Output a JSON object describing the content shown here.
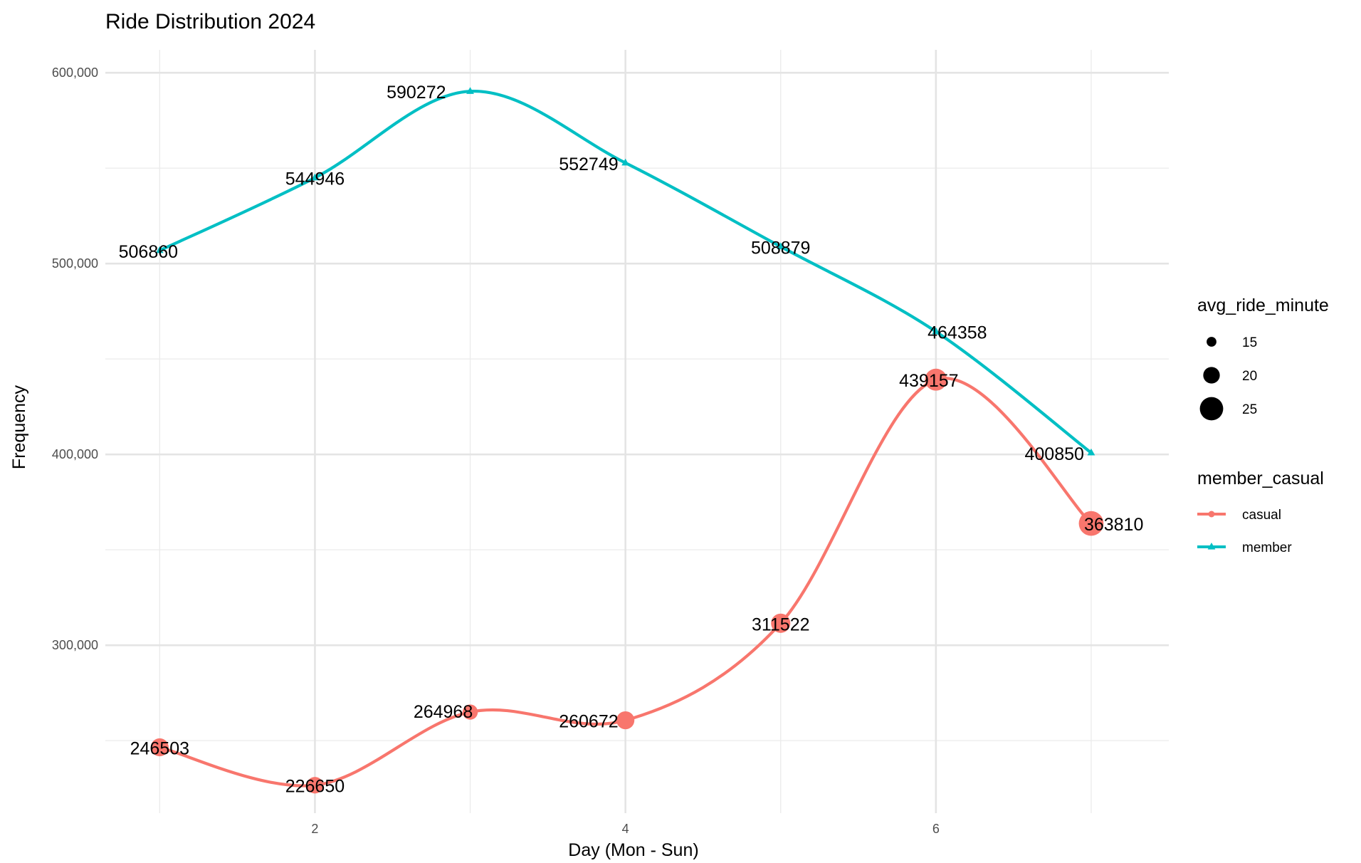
{
  "chart_data": {
    "type": "line",
    "title": "Ride Distribution 2024",
    "xlabel": "Day (Mon - Sun)",
    "ylabel": "Frequency",
    "x": [
      1,
      2,
      3,
      4,
      5,
      6,
      7
    ],
    "xlim": [
      0.65,
      7.5
    ],
    "ylim": [
      212000,
      612000
    ],
    "x_ticks": [
      2,
      4,
      6
    ],
    "x_tick_labels": [
      "2",
      "4",
      "6"
    ],
    "y_ticks": [
      300000,
      400000,
      500000,
      600000
    ],
    "y_tick_labels": [
      "300,000",
      "400,000",
      "500,000",
      "600,000"
    ],
    "grid": true,
    "legend_position": "right",
    "series": [
      {
        "name": "casual",
        "color": "#F8766D",
        "marker": "circle",
        "values": [
          246503,
          226650,
          264968,
          260672,
          311522,
          439157,
          363810
        ],
        "labels": [
          "246503",
          "226650",
          "264968",
          "260672",
          "311522",
          "439157",
          "363810"
        ],
        "avg_ride_minute": [
          21,
          20,
          19,
          21,
          22,
          24,
          26
        ]
      },
      {
        "name": "member",
        "color": "#00BFC4",
        "marker": "triangle",
        "values": [
          506860,
          544946,
          590272,
          552749,
          508879,
          464358,
          400850
        ],
        "labels": [
          "506860",
          "544946",
          "590272",
          "552749",
          "508879",
          "464358",
          "400850"
        ]
      }
    ],
    "legend": {
      "size_title": "avg_ride_minute",
      "size_entries": [
        {
          "label": "15",
          "value": 15
        },
        {
          "label": "20",
          "value": 20
        },
        {
          "label": "25",
          "value": 25
        }
      ],
      "color_title": "member_casual",
      "color_entries": [
        {
          "label": "casual",
          "color": "#F8766D",
          "marker": "circle"
        },
        {
          "label": "member",
          "color": "#00BFC4",
          "marker": "triangle"
        }
      ]
    }
  }
}
